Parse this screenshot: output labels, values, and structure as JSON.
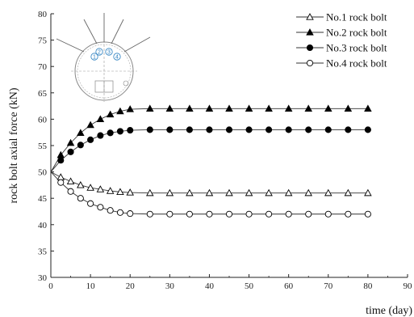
{
  "chart_data": {
    "type": "line",
    "xlabel": "time (day)",
    "ylabel": "rock bolt axial force (kN)",
    "xlim": [
      0,
      90
    ],
    "ylim": [
      30,
      80
    ],
    "xticks": [
      0,
      10,
      20,
      30,
      40,
      50,
      60,
      70,
      80,
      90
    ],
    "yticks": [
      30,
      35,
      40,
      45,
      50,
      55,
      60,
      65,
      70,
      75,
      80
    ],
    "grid": false,
    "legend_position": "top-right",
    "series": [
      {
        "name": "No.1 rock bolt",
        "marker": "triangle-open",
        "x": [
          0,
          2.5,
          5,
          7.5,
          10,
          12.5,
          15,
          17.5,
          20,
          25,
          30,
          35,
          40,
          45,
          50,
          55,
          60,
          65,
          70,
          75,
          80
        ],
        "y": [
          50,
          49,
          48.2,
          47.5,
          47,
          46.7,
          46.4,
          46.2,
          46.1,
          46,
          46,
          46,
          46,
          46,
          46,
          46,
          46,
          46,
          46,
          46,
          46
        ]
      },
      {
        "name": "No.2 rock bolt",
        "marker": "triangle-filled",
        "x": [
          0,
          2.5,
          5,
          7.5,
          10,
          12.5,
          15,
          17.5,
          20,
          25,
          30,
          35,
          40,
          45,
          50,
          55,
          60,
          65,
          70,
          75,
          80
        ],
        "y": [
          50,
          53.2,
          55.5,
          57.4,
          58.9,
          60,
          60.9,
          61.5,
          61.9,
          62,
          62,
          62,
          62,
          62,
          62,
          62,
          62,
          62,
          62,
          62,
          62
        ]
      },
      {
        "name": "No.3 rock bolt",
        "marker": "circle-filled",
        "x": [
          0,
          2.5,
          5,
          7.5,
          10,
          12.5,
          15,
          17.5,
          20,
          25,
          30,
          35,
          40,
          45,
          50,
          55,
          60,
          65,
          70,
          75,
          80
        ],
        "y": [
          50,
          52.2,
          53.8,
          55.1,
          56.1,
          56.9,
          57.4,
          57.7,
          57.9,
          58,
          58,
          58,
          58,
          58,
          58,
          58,
          58,
          58,
          58,
          58,
          58
        ]
      },
      {
        "name": "No.4 rock bolt",
        "marker": "circle-open",
        "x": [
          0,
          2.5,
          5,
          7.5,
          10,
          12.5,
          15,
          17.5,
          20,
          25,
          30,
          35,
          40,
          45,
          50,
          55,
          60,
          65,
          70,
          75,
          80
        ],
        "y": [
          50,
          48,
          46.3,
          45,
          44,
          43.3,
          42.7,
          42.3,
          42.1,
          42,
          42,
          42,
          42,
          42,
          42,
          42,
          42,
          42,
          42,
          42,
          42
        ]
      }
    ],
    "inset": {
      "bolt_labels": [
        "1",
        "2",
        "3",
        "4"
      ]
    }
  },
  "colors": {
    "axis": "#222222",
    "line": "#333333",
    "inset_outline": "#777777",
    "inset_labels": "#2a7fc0"
  }
}
